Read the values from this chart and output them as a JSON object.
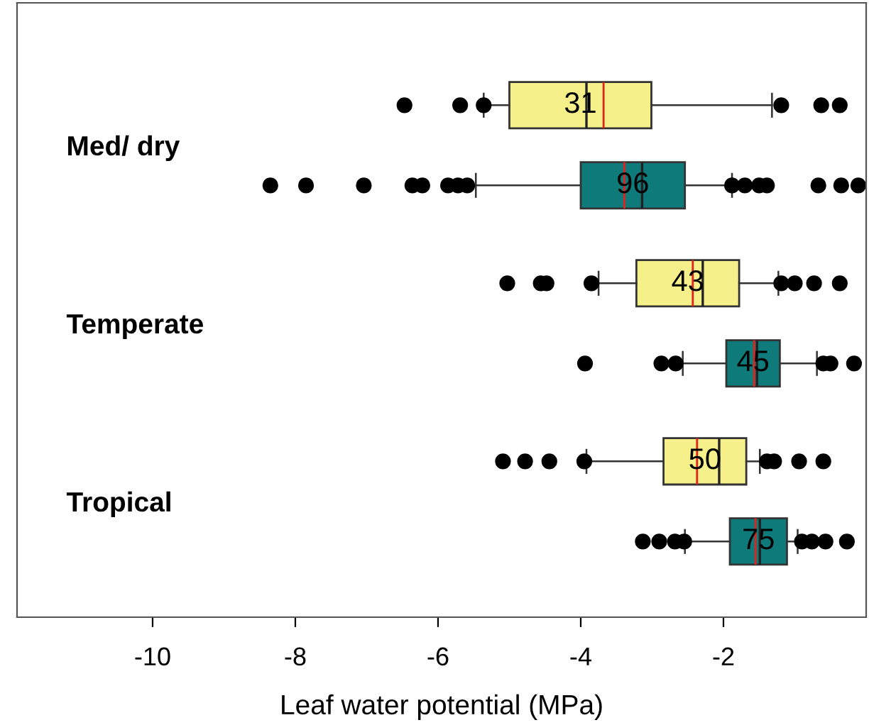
{
  "chart_data": {
    "type": "box",
    "orientation": "horizontal",
    "xlabel": "Leaf water potential (MPa)",
    "categories": [
      "Med/ dry",
      "Temperate",
      "Tropical"
    ],
    "xlim": [
      -11.9,
      0
    ],
    "xticks": [
      -10,
      -8,
      -6,
      -4,
      -2
    ],
    "grid": false,
    "legend": false,
    "series": [
      {
        "color": "#f5f08a",
        "value_labels": [
          "31",
          "43",
          "50"
        ],
        "boxes": [
          {
            "low": -5.36,
            "q1": -5.0,
            "median": -3.92,
            "q3": -3.01,
            "high": -1.32,
            "mean": -3.68,
            "outliers": [
              -6.47,
              -5.69,
              -5.36,
              -1.19,
              -0.63,
              -0.37
            ]
          },
          {
            "low": -3.75,
            "q1": -3.22,
            "median": -2.29,
            "q3": -1.78,
            "high": -1.23,
            "mean": -2.43,
            "outliers": [
              -5.03,
              -4.56,
              -4.48,
              -3.85,
              -1.19,
              -1.0,
              -0.73,
              -0.37
            ]
          },
          {
            "low": -3.92,
            "q1": -2.84,
            "median": -2.06,
            "q3": -1.68,
            "high": -1.49,
            "mean": -2.37,
            "outliers": [
              -5.09,
              -4.78,
              -4.44,
              -3.95,
              -1.39,
              -1.29,
              -0.94,
              -0.6
            ]
          }
        ]
      },
      {
        "color": "#0f7a7a",
        "value_labels": [
          "96",
          "45",
          "75"
        ],
        "boxes": [
          {
            "low": -5.47,
            "q1": -4.0,
            "median": -3.14,
            "q3": -2.54,
            "high": -1.88,
            "mean": -3.39,
            "outliers": [
              -8.35,
              -7.85,
              -7.04,
              -6.36,
              -6.22,
              -5.86,
              -5.72,
              -5.59,
              -1.88,
              -1.7,
              -1.5,
              -1.39,
              -0.67,
              -0.35,
              -0.11
            ]
          },
          {
            "low": -2.57,
            "q1": -1.96,
            "median": -1.53,
            "q3": -1.21,
            "high": -0.69,
            "mean": -1.57,
            "outliers": [
              -3.94,
              -2.87,
              -2.67,
              -0.6,
              -0.5,
              -0.17
            ]
          },
          {
            "low": -2.54,
            "q1": -1.91,
            "median": -1.49,
            "q3": -1.11,
            "high": -0.96,
            "mean": -1.55,
            "outliers": [
              -3.13,
              -2.9,
              -2.68,
              -2.55,
              -0.9,
              -0.76,
              -0.57,
              -0.27
            ]
          }
        ]
      }
    ]
  }
}
